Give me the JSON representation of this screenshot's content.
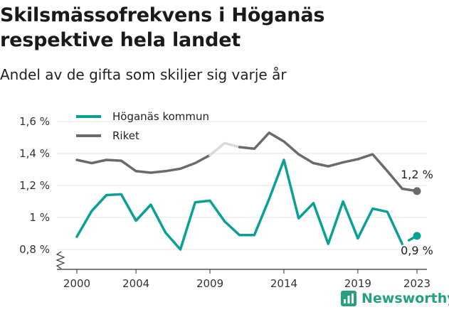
{
  "header": {
    "title": "Skilsmässofrekvens i Höganäs respektive hela landet",
    "subtitle": "Andel av de gifta som skiljer sig varje år"
  },
  "brand": {
    "name": "Newsworthy",
    "color": "#27a07f"
  },
  "colors": {
    "hoganas": "#0aa195",
    "riket": "#6b6b6f",
    "riket_gap": "#d9d9d9",
    "grid": "#e3e3e3",
    "axis": "#333333"
  },
  "chart_data": {
    "type": "line",
    "title": "Skilsmässofrekvens i Höganäs respektive hela landet",
    "subtitle": "Andel av de gifta som skiljer sig varje år",
    "x": [
      2000,
      2001,
      2002,
      2003,
      2004,
      2005,
      2006,
      2007,
      2008,
      2009,
      2010,
      2011,
      2012,
      2013,
      2014,
      2015,
      2016,
      2017,
      2018,
      2019,
      2020,
      2021,
      2022,
      2023
    ],
    "series": [
      {
        "name": "Höganäs kommun",
        "color": "#0aa195",
        "values": [
          0.88,
          1.04,
          1.14,
          1.145,
          0.98,
          1.08,
          0.905,
          0.8,
          1.095,
          1.105,
          0.975,
          0.89,
          0.89,
          1.115,
          1.36,
          0.995,
          1.09,
          0.835,
          1.1,
          0.87,
          1.055,
          1.035,
          0.835,
          0.885
        ],
        "end_label": "0,9 %"
      },
      {
        "name": "Riket",
        "color": "#6b6b6f",
        "values": [
          1.36,
          1.34,
          1.36,
          1.355,
          1.29,
          1.28,
          1.29,
          1.305,
          1.34,
          1.39,
          1.465,
          1.44,
          1.43,
          1.53,
          1.475,
          1.395,
          1.34,
          1.32,
          1.345,
          1.365,
          1.395,
          1.29,
          1.18,
          1.165
        ],
        "end_label": "1,2 %"
      }
    ],
    "y_ticks": [
      0.8,
      1.0,
      1.2,
      1.4,
      1.6
    ],
    "y_tick_labels": [
      "0,8 %",
      "1 %",
      "1,2 %",
      "1,4 %",
      "1,6 %"
    ],
    "x_ticks": [
      2000,
      2004,
      2009,
      2014,
      2019,
      2023
    ],
    "x_tick_labels": [
      "2000",
      "2004",
      "2009",
      "2014",
      "2019",
      "2023"
    ],
    "ylim": [
      0.7,
      1.65
    ],
    "grid": true,
    "legend_position": "top-left"
  }
}
